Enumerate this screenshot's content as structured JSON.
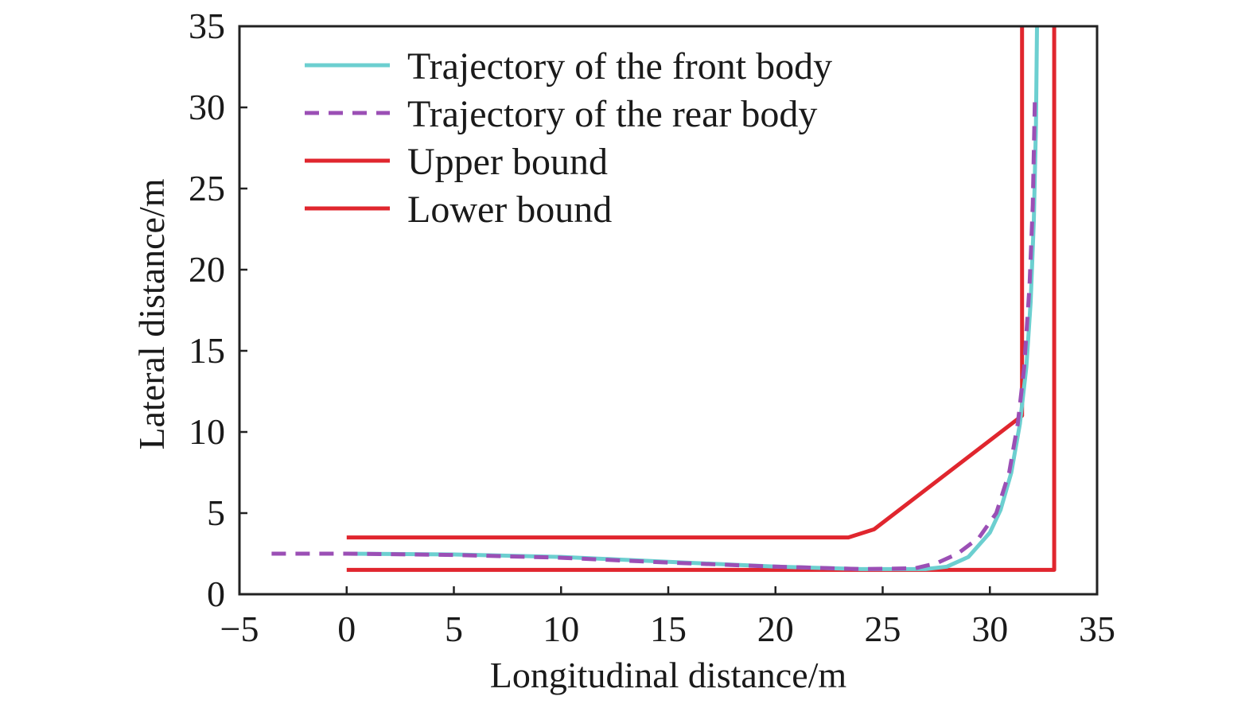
{
  "chart_data": {
    "type": "line",
    "xlabel": "Longitudinal distance/m",
    "ylabel": "Lateral distance/m",
    "xlim": [
      -5,
      35
    ],
    "ylim": [
      0,
      35
    ],
    "x_ticks": [
      -5,
      0,
      5,
      10,
      15,
      20,
      25,
      30,
      35
    ],
    "y_ticks": [
      0,
      5,
      10,
      15,
      20,
      25,
      30,
      35
    ],
    "x_tick_labels": [
      "−5",
      "0",
      "5",
      "10",
      "15",
      "20",
      "25",
      "30",
      "35"
    ],
    "y_tick_labels": [
      "0",
      "5",
      "10",
      "15",
      "20",
      "25",
      "30",
      "35"
    ],
    "grid": false,
    "legend_position": "top-left",
    "series": [
      {
        "name": "Trajectory of the front body",
        "color": "#6ccfd0",
        "style": "solid",
        "points": [
          [
            0,
            2.5
          ],
          [
            5,
            2.45
          ],
          [
            10,
            2.3
          ],
          [
            15,
            2.0
          ],
          [
            20,
            1.7
          ],
          [
            24,
            1.55
          ],
          [
            27,
            1.55
          ],
          [
            28,
            1.7
          ],
          [
            29,
            2.3
          ],
          [
            30,
            3.8
          ],
          [
            30.5,
            5.2
          ],
          [
            31,
            7.5
          ],
          [
            31.4,
            10.5
          ],
          [
            31.7,
            14
          ],
          [
            31.9,
            18
          ],
          [
            32.05,
            23
          ],
          [
            32.15,
            29
          ],
          [
            32.2,
            35
          ]
        ]
      },
      {
        "name": "Trajectory of the rear body",
        "color": "#9b4fb5",
        "style": "dashed",
        "points": [
          [
            -3.5,
            2.5
          ],
          [
            0,
            2.5
          ],
          [
            5,
            2.42
          ],
          [
            10,
            2.25
          ],
          [
            15,
            1.95
          ],
          [
            20,
            1.7
          ],
          [
            24,
            1.55
          ],
          [
            26.5,
            1.6
          ],
          [
            27.5,
            1.9
          ],
          [
            28.5,
            2.5
          ],
          [
            29.5,
            3.5
          ],
          [
            30.3,
            5.0
          ],
          [
            30.9,
            7.5
          ],
          [
            31.3,
            10.5
          ],
          [
            31.6,
            14
          ],
          [
            31.85,
            19
          ],
          [
            32.0,
            24
          ],
          [
            32.1,
            30.5
          ]
        ]
      },
      {
        "name": "Upper bound",
        "color": "#e0262e",
        "style": "solid",
        "points": [
          [
            0,
            3.5
          ],
          [
            23.4,
            3.5
          ],
          [
            24.6,
            4.0
          ],
          [
            31.5,
            11.0
          ],
          [
            31.5,
            35
          ]
        ]
      },
      {
        "name": "Lower bound",
        "color": "#e0262e",
        "style": "solid",
        "points": [
          [
            0,
            1.5
          ],
          [
            33.0,
            1.5
          ],
          [
            33.0,
            35
          ]
        ]
      }
    ]
  }
}
